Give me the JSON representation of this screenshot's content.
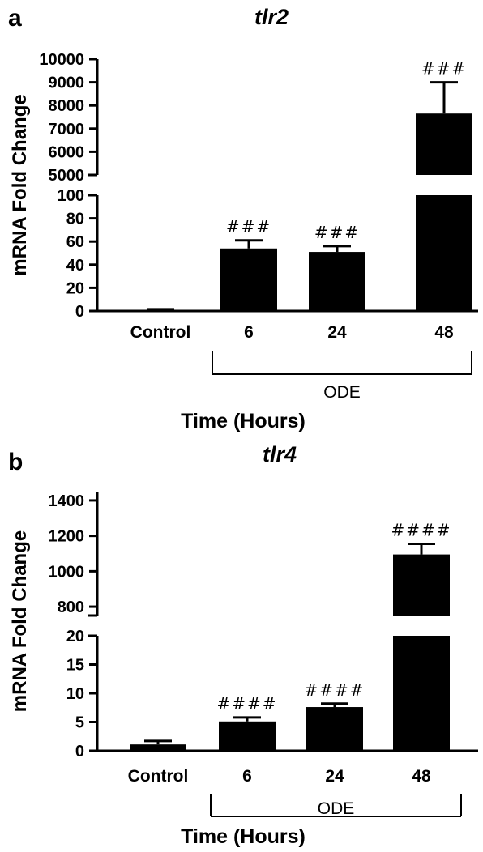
{
  "chart_data": [
    {
      "type": "bar",
      "panel": "a",
      "title": "tlr2",
      "ylabel": "mRNA Fold Change",
      "xlabel": "Time (Hours)",
      "group_label": "ODE",
      "grouped_categories": [
        "6",
        "24",
        "48"
      ],
      "categories": [
        "Control",
        "6",
        "24",
        "48"
      ],
      "values": [
        1,
        54,
        51,
        7650
      ],
      "errors": [
        0.5,
        7,
        5,
        1350
      ],
      "significance": [
        "",
        "###",
        "###",
        "###"
      ],
      "y_axis_broken": true,
      "lower_segment": {
        "ylim": [
          0,
          100
        ],
        "ticks": [
          "0",
          "20",
          "40",
          "60",
          "80",
          "100"
        ]
      },
      "upper_segment": {
        "ylim": [
          5000,
          10000
        ],
        "ticks": [
          "5000",
          "6000",
          "7000",
          "8000",
          "9000",
          "10000"
        ]
      },
      "grid": false,
      "colors": {
        "bar": "#000000",
        "axis": "#000000"
      }
    },
    {
      "type": "bar",
      "panel": "b",
      "title": "tlr4",
      "ylabel": "mRNA Fold Change",
      "xlabel": "Time (Hours)",
      "group_label": "ODE",
      "grouped_categories": [
        "6",
        "24",
        "48"
      ],
      "categories": [
        "Control",
        "6",
        "24",
        "48"
      ],
      "values": [
        1.1,
        5.1,
        7.6,
        1095
      ],
      "errors": [
        0.6,
        0.7,
        0.6,
        60
      ],
      "significance": [
        "",
        "####",
        "####",
        "####"
      ],
      "y_axis_broken": true,
      "lower_segment": {
        "ylim": [
          0,
          20
        ],
        "ticks": [
          "0",
          "5",
          "10",
          "15",
          "20"
        ]
      },
      "upper_segment": {
        "ylim": [
          750,
          1450
        ],
        "ticks": [
          "800",
          "1000",
          "1200",
          "1400"
        ]
      },
      "grid": false,
      "colors": {
        "bar": "#000000",
        "axis": "#000000"
      }
    }
  ]
}
